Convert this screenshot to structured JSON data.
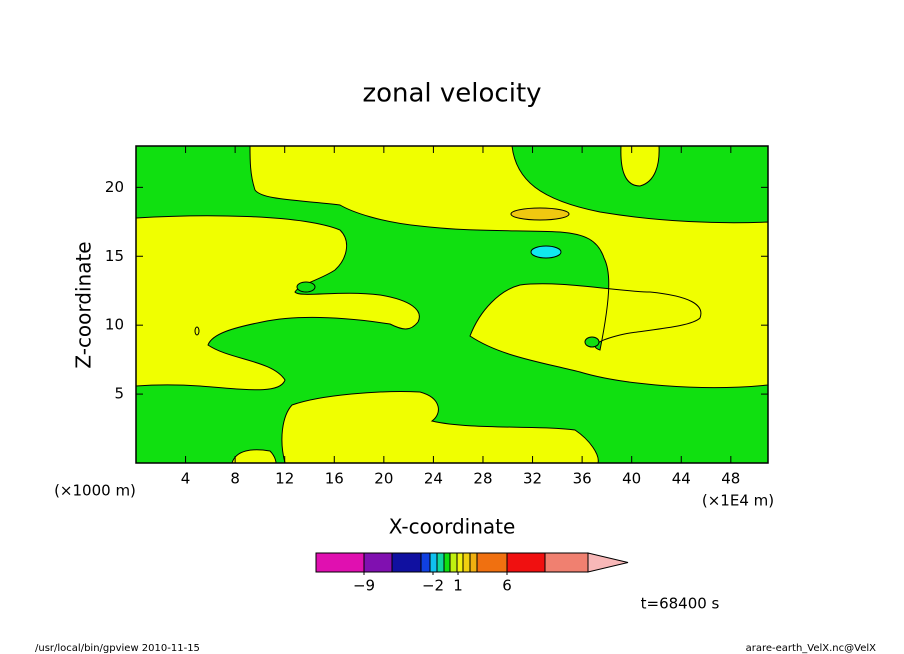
{
  "chart_data": {
    "type": "contour",
    "title": "zonal velocity",
    "xlabel": "X-coordinate",
    "ylabel": "Z-coordinate",
    "x_unit_left": "(×1000 m)",
    "x_unit_right": "(×1E4 m)",
    "xlim": [
      0,
      51
    ],
    "xticks": [
      4,
      8,
      12,
      16,
      20,
      24,
      28,
      32,
      36,
      40,
      44,
      48
    ],
    "ylim": [
      0,
      23
    ],
    "yticks": [
      5,
      10,
      15,
      20
    ],
    "colorbar": {
      "colors": [
        "#e010b0",
        "#8010b0",
        "#1010a0",
        "#1040e0",
        "#10c0f0",
        "#10d8a0",
        "#10e010",
        "#c0f010",
        "#f0f010",
        "#f0d010",
        "#f0b010",
        "#f07010",
        "#f01010",
        "#f08070",
        "#f8b8b8"
      ],
      "ticks": [
        {
          "value": -9,
          "label": "−9"
        },
        {
          "value": -2,
          "label": "−2"
        },
        1,
        6
      ]
    },
    "annotation": "t=68400 s",
    "footer_left": "/usr/local/bin/gpview   2010-11-15",
    "footer_right": "arare-earth_VelX.nc@VelX"
  }
}
